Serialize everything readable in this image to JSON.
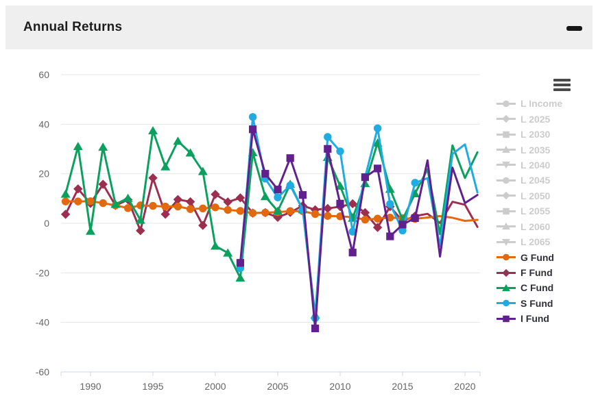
{
  "header": {
    "title": "Annual Returns"
  },
  "panel": {
    "collapse_icon": "minus"
  },
  "chart_menu": {
    "icon": "hamburger"
  },
  "colors": {
    "header_bg": "#efefef",
    "title_text": "#1d1d1d",
    "grid_line": "#e6e6e6",
    "axis_line": "#ccd6eb",
    "tick_label": "#666666",
    "legend_enabled_text": "#2f2f38",
    "legend_disabled": "#cccccc",
    "hamburger": "#4a4a4a",
    "g_fund": "#e2690e",
    "f_fund": "#9c2f50",
    "c_fund": "#0ba05e",
    "s_fund": "#20abe2",
    "i_fund": "#61208e"
  },
  "legend": {
    "items": [
      {
        "label": "L Income",
        "marker": "circle",
        "enabled": false,
        "color": "#cccccc"
      },
      {
        "label": "L 2025",
        "marker": "diamond",
        "enabled": false,
        "color": "#cccccc"
      },
      {
        "label": "L 2030",
        "marker": "square",
        "enabled": false,
        "color": "#cccccc"
      },
      {
        "label": "L 2035",
        "marker": "triangle",
        "enabled": false,
        "color": "#cccccc"
      },
      {
        "label": "L 2040",
        "marker": "triangle-down",
        "enabled": false,
        "color": "#cccccc"
      },
      {
        "label": "L 2045",
        "marker": "circle",
        "enabled": false,
        "color": "#cccccc"
      },
      {
        "label": "L 2050",
        "marker": "diamond",
        "enabled": false,
        "color": "#cccccc"
      },
      {
        "label": "L 2055",
        "marker": "square",
        "enabled": false,
        "color": "#cccccc"
      },
      {
        "label": "L 2060",
        "marker": "triangle",
        "enabled": false,
        "color": "#cccccc"
      },
      {
        "label": "L 2065",
        "marker": "triangle-down",
        "enabled": false,
        "color": "#cccccc"
      },
      {
        "label": "G Fund",
        "marker": "circle",
        "enabled": true,
        "color": "#e2690e"
      },
      {
        "label": "F Fund",
        "marker": "diamond",
        "enabled": true,
        "color": "#9c2f50"
      },
      {
        "label": "C Fund",
        "marker": "triangle",
        "enabled": true,
        "color": "#0ba05e"
      },
      {
        "label": "S Fund",
        "marker": "circle",
        "enabled": true,
        "color": "#20abe2"
      },
      {
        "label": "I Fund",
        "marker": "square",
        "enabled": true,
        "color": "#61208e"
      }
    ]
  },
  "chart_data": {
    "type": "line",
    "title": "Annual Returns",
    "xlabel": "",
    "ylabel": "",
    "ylim": [
      -60,
      60
    ],
    "yticks": [
      60,
      40,
      20,
      0,
      -20,
      -40,
      -60
    ],
    "xticks": [
      1990,
      1995,
      2000,
      2005,
      2010,
      2015,
      2020
    ],
    "grid": true,
    "legend_position": "right",
    "markers_shown_through_year": 2016,
    "hidden_series": [
      "L Income",
      "L 2025",
      "L 2030",
      "L 2035",
      "L 2040",
      "L 2045",
      "L 2050",
      "L 2055",
      "L 2060",
      "L 2065"
    ],
    "series": [
      {
        "name": "G Fund",
        "marker": "circle",
        "color": "#e2690e",
        "points": [
          [
            1988,
            8.81
          ],
          [
            1989,
            8.81
          ],
          [
            1990,
            8.9
          ],
          [
            1991,
            8.15
          ],
          [
            1992,
            7.23
          ],
          [
            1993,
            6.14
          ],
          [
            1994,
            7.22
          ],
          [
            1995,
            7.03
          ],
          [
            1996,
            6.76
          ],
          [
            1997,
            6.77
          ],
          [
            1998,
            5.74
          ],
          [
            1999,
            5.99
          ],
          [
            2000,
            6.42
          ],
          [
            2001,
            5.39
          ],
          [
            2002,
            5.0
          ],
          [
            2003,
            4.11
          ],
          [
            2004,
            4.3
          ],
          [
            2005,
            4.49
          ],
          [
            2006,
            4.93
          ],
          [
            2007,
            4.87
          ],
          [
            2008,
            3.75
          ],
          [
            2009,
            2.97
          ],
          [
            2010,
            2.81
          ],
          [
            2011,
            2.45
          ],
          [
            2012,
            1.47
          ],
          [
            2013,
            1.89
          ],
          [
            2014,
            2.31
          ],
          [
            2015,
            2.04
          ],
          [
            2016,
            1.82
          ],
          [
            2017,
            2.33
          ],
          [
            2018,
            2.91
          ],
          [
            2019,
            2.24
          ],
          [
            2020,
            0.97
          ],
          [
            2021,
            1.38
          ]
        ]
      },
      {
        "name": "F Fund",
        "marker": "diamond",
        "color": "#9c2f50",
        "points": [
          [
            1988,
            3.63
          ],
          [
            1989,
            13.89
          ],
          [
            1990,
            8.0
          ],
          [
            1991,
            15.75
          ],
          [
            1992,
            7.2
          ],
          [
            1993,
            9.52
          ],
          [
            1994,
            -2.96
          ],
          [
            1995,
            18.31
          ],
          [
            1996,
            3.66
          ],
          [
            1997,
            9.6
          ],
          [
            1998,
            8.7
          ],
          [
            1999,
            -0.85
          ],
          [
            2000,
            11.67
          ],
          [
            2001,
            8.61
          ],
          [
            2002,
            10.27
          ],
          [
            2003,
            4.11
          ],
          [
            2004,
            4.3
          ],
          [
            2005,
            2.4
          ],
          [
            2006,
            4.4
          ],
          [
            2007,
            7.09
          ],
          [
            2008,
            5.45
          ],
          [
            2009,
            5.99
          ],
          [
            2010,
            6.71
          ],
          [
            2011,
            7.89
          ],
          [
            2012,
            4.29
          ],
          [
            2013,
            -1.68
          ],
          [
            2014,
            6.73
          ],
          [
            2015,
            0.91
          ],
          [
            2016,
            2.91
          ],
          [
            2017,
            3.82
          ],
          [
            2018,
            0.15
          ],
          [
            2019,
            8.68
          ],
          [
            2020,
            7.5
          ],
          [
            2021,
            -1.46
          ]
        ]
      },
      {
        "name": "C Fund",
        "marker": "triangle",
        "color": "#0ba05e",
        "points": [
          [
            1988,
            11.84
          ],
          [
            1989,
            31.03
          ],
          [
            1990,
            -3.15
          ],
          [
            1991,
            30.77
          ],
          [
            1992,
            7.7
          ],
          [
            1993,
            10.13
          ],
          [
            1994,
            1.33
          ],
          [
            1995,
            37.41
          ],
          [
            1996,
            22.85
          ],
          [
            1997,
            33.17
          ],
          [
            1998,
            28.44
          ],
          [
            1999,
            20.95
          ],
          [
            2000,
            -9.14
          ],
          [
            2001,
            -11.94
          ],
          [
            2002,
            -22.05
          ],
          [
            2003,
            28.54
          ],
          [
            2004,
            10.82
          ],
          [
            2005,
            4.96
          ],
          [
            2006,
            15.79
          ],
          [
            2007,
            5.54
          ],
          [
            2008,
            -36.99
          ],
          [
            2009,
            26.68
          ],
          [
            2010,
            15.06
          ],
          [
            2011,
            2.11
          ],
          [
            2012,
            16.07
          ],
          [
            2013,
            32.45
          ],
          [
            2014,
            13.78
          ],
          [
            2015,
            1.46
          ],
          [
            2016,
            12.01
          ],
          [
            2017,
            21.82
          ],
          [
            2018,
            -4.41
          ],
          [
            2019,
            31.45
          ],
          [
            2020,
            18.31
          ],
          [
            2021,
            28.68
          ]
        ]
      },
      {
        "name": "S Fund",
        "marker": "circle",
        "color": "#20abe2",
        "points": [
          [
            2002,
            -18.14
          ],
          [
            2003,
            42.92
          ],
          [
            2004,
            18.03
          ],
          [
            2005,
            10.45
          ],
          [
            2006,
            15.3
          ],
          [
            2007,
            5.49
          ],
          [
            2008,
            -38.32
          ],
          [
            2009,
            34.85
          ],
          [
            2010,
            29.06
          ],
          [
            2011,
            -3.38
          ],
          [
            2012,
            18.57
          ],
          [
            2013,
            38.35
          ],
          [
            2014,
            7.8
          ],
          [
            2015,
            -2.92
          ],
          [
            2016,
            16.35
          ],
          [
            2017,
            18.22
          ],
          [
            2018,
            -9.26
          ],
          [
            2019,
            27.97
          ],
          [
            2020,
            31.85
          ],
          [
            2021,
            12.45
          ]
        ]
      },
      {
        "name": "I Fund",
        "marker": "square",
        "color": "#61208e",
        "points": [
          [
            2002,
            -15.98
          ],
          [
            2003,
            37.94
          ],
          [
            2004,
            20.0
          ],
          [
            2005,
            13.63
          ],
          [
            2006,
            26.32
          ],
          [
            2007,
            11.43
          ],
          [
            2008,
            -42.43
          ],
          [
            2009,
            30.04
          ],
          [
            2010,
            7.94
          ],
          [
            2011,
            -11.81
          ],
          [
            2012,
            18.62
          ],
          [
            2013,
            22.13
          ],
          [
            2014,
            -5.27
          ],
          [
            2015,
            -0.51
          ],
          [
            2016,
            2.1
          ],
          [
            2017,
            25.42
          ],
          [
            2018,
            -13.43
          ],
          [
            2019,
            22.47
          ],
          [
            2020,
            8.17
          ],
          [
            2021,
            11.45
          ]
        ]
      }
    ]
  }
}
